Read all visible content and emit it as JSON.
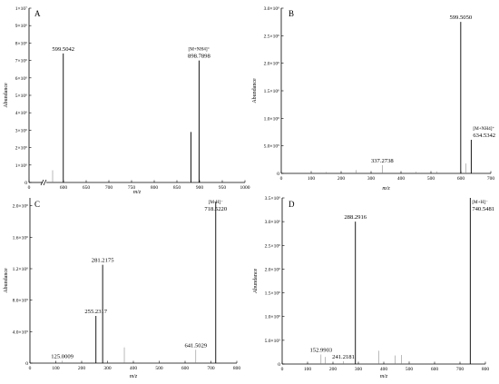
{
  "chart_data": [
    {
      "panel": "A",
      "type": "bar",
      "xlabel": "m/z",
      "ylabel": "Abundance",
      "xlim": [
        0,
        1000
      ],
      "x_break": [
        0,
        550
      ],
      "ylim": [
        0,
        10000000
      ],
      "xticks": [
        0,
        600,
        650,
        700,
        750,
        800,
        850,
        900,
        950,
        1000
      ],
      "xtick_labels": [
        "0",
        "600",
        "650",
        "700",
        "750",
        "800",
        "850",
        "900",
        "950",
        "1000"
      ],
      "yticks": [
        0,
        1000000,
        2000000,
        3000000,
        4000000,
        5000000,
        6000000,
        7000000,
        8000000,
        9000000,
        10000000
      ],
      "ytick_labels": [
        "0",
        "1×10⁶",
        "2×10⁶",
        "3×10⁶",
        "4×10⁶",
        "5×10⁶",
        "6×10⁶",
        "7×10⁶",
        "8×10⁶",
        "9×10⁶",
        "1×10⁷"
      ],
      "peaks": [
        {
          "x": 576,
          "y": 700000
        },
        {
          "x": 599.5,
          "y": 7400000
        },
        {
          "x": 881,
          "y": 2900000
        },
        {
          "x": 898.8,
          "y": 7000000
        }
      ],
      "annotations": [
        {
          "text": "599.5042",
          "x": 599.5
        },
        {
          "text": "[M+NH4]⁺",
          "x": 898.8
        },
        {
          "text": "898.7898",
          "x": 898.8
        }
      ]
    },
    {
      "panel": "B",
      "type": "bar",
      "xlabel": "m/z",
      "ylabel": "Abundance",
      "xlim": [
        0,
        700
      ],
      "ylim": [
        0,
        3000000
      ],
      "xticks": [
        0,
        100,
        200,
        300,
        400,
        500,
        600,
        700
      ],
      "xtick_labels": [
        "0",
        "100",
        "200",
        "300",
        "400",
        "500",
        "600",
        "700"
      ],
      "yticks": [
        0,
        500000,
        1000000,
        1500000,
        2000000,
        2500000,
        3000000
      ],
      "ytick_labels": [
        "0",
        "5.0×10⁵",
        "1.0×10⁶",
        "1.5×10⁶",
        "2.0×10⁶",
        "2.5×10⁶",
        "3.0×10⁶"
      ],
      "peaks": [
        {
          "x": 100,
          "y": 40000
        },
        {
          "x": 150,
          "y": 25000
        },
        {
          "x": 250,
          "y": 60000
        },
        {
          "x": 337.3,
          "y": 150000
        },
        {
          "x": 450,
          "y": 30000
        },
        {
          "x": 520,
          "y": 35000
        },
        {
          "x": 599.5,
          "y": 2750000
        },
        {
          "x": 617,
          "y": 180000
        },
        {
          "x": 634.5,
          "y": 610000
        }
      ],
      "annotations": [
        {
          "text": "337.2738",
          "x": 337.3
        },
        {
          "text": "599.5050",
          "x": 599.5
        },
        {
          "text": "[M+NH4]⁺",
          "x": 634.5
        },
        {
          "text": "634.5342",
          "x": 634.5
        }
      ]
    },
    {
      "panel": "C",
      "type": "bar",
      "xlabel": "m/z",
      "ylabel": "Abundance",
      "xlim": [
        0,
        800
      ],
      "ylim": [
        0,
        2100000
      ],
      "xticks": [
        0,
        100,
        200,
        300,
        400,
        500,
        600,
        700,
        800
      ],
      "xtick_labels": [
        "0",
        "100",
        "200",
        "300",
        "400",
        "500",
        "600",
        "700",
        "800"
      ],
      "yticks": [
        0,
        400000,
        800000,
        1200000,
        1600000,
        2000000
      ],
      "ytick_labels": [
        "0",
        "4.0×10⁵",
        "8.0×10⁵",
        "1.2×10⁶",
        "1.6×10⁶",
        "2.0×10⁶"
      ],
      "peaks": [
        {
          "x": 125,
          "y": 30000
        },
        {
          "x": 255.2,
          "y": 600000
        },
        {
          "x": 281.2,
          "y": 1250000
        },
        {
          "x": 300,
          "y": 20000
        },
        {
          "x": 365,
          "y": 200000
        },
        {
          "x": 500,
          "y": 20000
        },
        {
          "x": 641.5,
          "y": 170000
        },
        {
          "x": 718.5,
          "y": 2050000
        }
      ],
      "annotations": [
        {
          "text": "125.0009",
          "x": 125
        },
        {
          "text": "255.2317",
          "x": 255.2
        },
        {
          "text": "281.2175",
          "x": 281.2
        },
        {
          "text": "641.5029",
          "x": 641.5
        },
        {
          "text": "[M-H]⁻",
          "x": 718.5
        },
        {
          "text": "718.5220",
          "x": 718.5
        }
      ]
    },
    {
      "panel": "D",
      "type": "bar",
      "xlabel": "m/z",
      "ylabel": "Abundance",
      "xlim": [
        0,
        800
      ],
      "ylim": [
        0,
        3500000
      ],
      "xticks": [
        0,
        100,
        200,
        300,
        400,
        500,
        600,
        700,
        800
      ],
      "xtick_labels": [
        "0",
        "100",
        "200",
        "300",
        "400",
        "500",
        "600",
        "700",
        "800"
      ],
      "yticks": [
        0,
        500000,
        1000000,
        1500000,
        2000000,
        2500000,
        3000000,
        3500000
      ],
      "ytick_labels": [
        "0",
        "5.0×10⁵",
        "1.0×10⁶",
        "1.5×10⁶",
        "2.0×10⁶",
        "2.5×10⁶",
        "3.0×10⁶",
        "3.5×10⁶"
      ],
      "peaks": [
        {
          "x": 153,
          "y": 200000
        },
        {
          "x": 170,
          "y": 150000
        },
        {
          "x": 241.2,
          "y": 60000
        },
        {
          "x": 288.3,
          "y": 3000000
        },
        {
          "x": 381,
          "y": 280000
        },
        {
          "x": 445,
          "y": 180000
        },
        {
          "x": 470,
          "y": 190000
        },
        {
          "x": 500,
          "y": 60000
        },
        {
          "x": 740.5,
          "y": 3500000
        }
      ],
      "annotations": [
        {
          "text": "152.9903",
          "x": 153
        },
        {
          "text": "241.2181",
          "x": 241.2
        },
        {
          "text": "288.2916",
          "x": 288.3
        },
        {
          "text": "[M+H]⁻",
          "x": 740.5
        },
        {
          "text": "740.5481",
          "x": 740.5
        }
      ]
    }
  ]
}
